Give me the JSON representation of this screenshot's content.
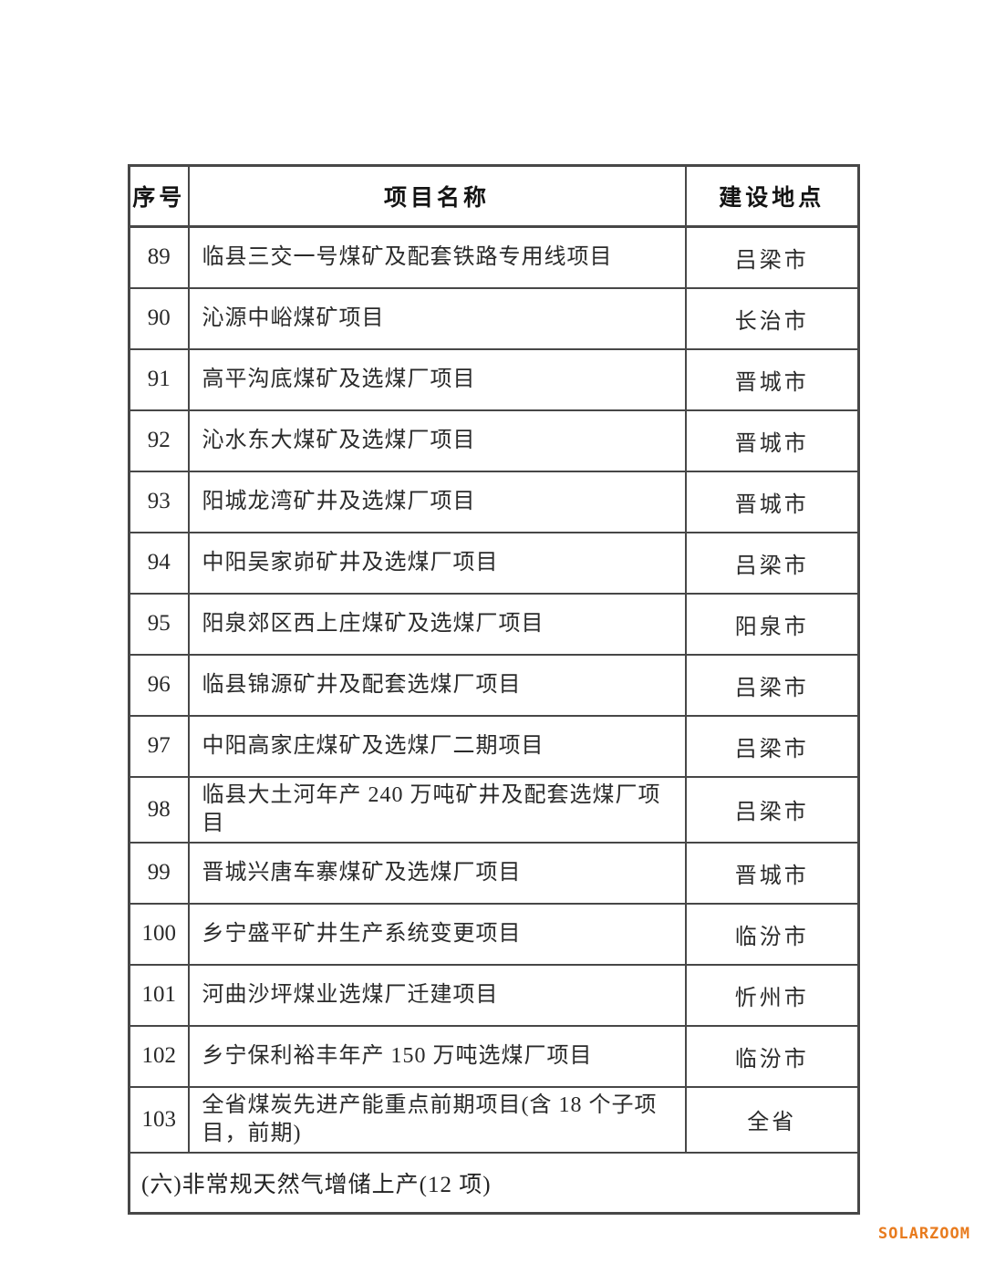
{
  "table": {
    "headers": [
      "序号",
      "项目名称",
      "建设地点"
    ],
    "rows": [
      {
        "no": "89",
        "name": "临县三交一号煤矿及配套铁路专用线项目",
        "location": "吕梁市"
      },
      {
        "no": "90",
        "name": "沁源中峪煤矿项目",
        "location": "长治市"
      },
      {
        "no": "91",
        "name": "高平沟底煤矿及选煤厂项目",
        "location": "晋城市"
      },
      {
        "no": "92",
        "name": "沁水东大煤矿及选煤厂项目",
        "location": "晋城市"
      },
      {
        "no": "93",
        "name": "阳城龙湾矿井及选煤厂项目",
        "location": "晋城市"
      },
      {
        "no": "94",
        "name": "中阳吴家峁矿井及选煤厂项目",
        "location": "吕梁市"
      },
      {
        "no": "95",
        "name": "阳泉郊区西上庄煤矿及选煤厂项目",
        "location": "阳泉市"
      },
      {
        "no": "96",
        "name": "临县锦源矿井及配套选煤厂项目",
        "location": "吕梁市"
      },
      {
        "no": "97",
        "name": "中阳高家庄煤矿及选煤厂二期项目",
        "location": "吕梁市"
      },
      {
        "no": "98",
        "name": "临县大土河年产 240 万吨矿井及配套选煤厂项目",
        "location": "吕梁市"
      },
      {
        "no": "99",
        "name": "晋城兴唐车寨煤矿及选煤厂项目",
        "location": "晋城市"
      },
      {
        "no": "100",
        "name": "乡宁盛平矿井生产系统变更项目",
        "location": "临汾市"
      },
      {
        "no": "101",
        "name": "河曲沙坪煤业选煤厂迁建项目",
        "location": "忻州市"
      },
      {
        "no": "102",
        "name": "乡宁保利裕丰年产 150 万吨选煤厂项目",
        "location": "临汾市"
      },
      {
        "no": "103",
        "name": "全省煤炭先进产能重点前期项目(含 18 个子项目，前期)",
        "location": "全省"
      }
    ],
    "section_footer": "(六)非常规天然气增储上产(12 项)"
  },
  "watermark": {
    "text": "SOLARZOOM",
    "color": "#e87b1e"
  }
}
